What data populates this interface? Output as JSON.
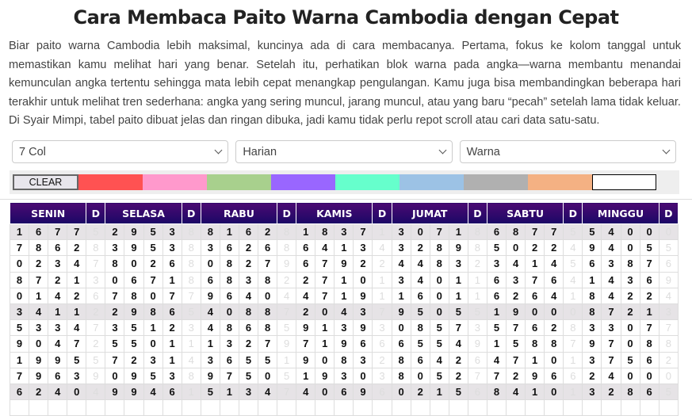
{
  "title": "Cara Membaca Paito Warna Cambodia dengan Cepat",
  "paragraph": "Biar paito warna Cambodia lebih maksimal, kuncinya ada di cara membacanya. Pertama, fokus ke kolom tanggal untuk memastikan kamu melihat hari yang benar. Setelah itu, perhatikan blok warna pada angka—warna membantu menandai kemunculan angka tertentu sehingga mata lebih cepat menangkap pengulangan. Kamu juga bisa membandingkan beberapa hari terakhir untuk melihat tren sederhana: angka yang sering muncul, jarang muncul, atau yang baru “pecah” setelah lama tidak keluar. Di Syair Mimpi, tabel paito dibuat jelas dan ringan dibuka, jadi kamu tidak perlu repot scroll atau cari data satu-satu.",
  "selects": {
    "columns": "7 Col",
    "period": "Harian",
    "mode": "Warna"
  },
  "palette": {
    "clear_label": "CLEAR",
    "colors": [
      "#ff5252",
      "#ff99cc",
      "#a8d08d",
      "#9966ff",
      "#66ffcc",
      "#9cc2e5",
      "#b0b0b0",
      "#f4b183",
      "#ffffff"
    ]
  },
  "table": {
    "days": [
      "SENIN",
      "SELASA",
      "RABU",
      "KAMIS",
      "JUMAT",
      "SABTU",
      "MINGGU"
    ],
    "d_label": "D",
    "rows": [
      [
        [
          "1677",
          "5"
        ],
        [
          "2953",
          "8"
        ],
        [
          "8162",
          "8"
        ],
        [
          "1837",
          "1"
        ],
        [
          "3071",
          "8"
        ],
        [
          "6877",
          "5"
        ],
        [
          "5400",
          "0"
        ]
      ],
      [
        [
          "7862",
          "8"
        ],
        [
          "3953",
          "8"
        ],
        [
          "3626",
          "8"
        ],
        [
          "6413",
          "4"
        ],
        [
          "3289",
          "8"
        ],
        [
          "5022",
          "4"
        ],
        [
          "9405",
          "5"
        ]
      ],
      [
        [
          "0234",
          "7"
        ],
        [
          "8026",
          "8"
        ],
        [
          "0827",
          "9"
        ],
        [
          "6792",
          "2"
        ],
        [
          "4483",
          "2"
        ],
        [
          "3414",
          "5"
        ],
        [
          "6387",
          "6"
        ]
      ],
      [
        [
          "8721",
          "3"
        ],
        [
          "0671",
          "8"
        ],
        [
          "6838",
          "2"
        ],
        [
          "2710",
          "1"
        ],
        [
          "3401",
          "1"
        ],
        [
          "6376",
          "4"
        ],
        [
          "1436",
          "9"
        ]
      ],
      [
        [
          "0142",
          "6"
        ],
        [
          "7807",
          "7"
        ],
        [
          "9640",
          "4"
        ],
        [
          "4719",
          "1"
        ],
        [
          "1601",
          "1"
        ],
        [
          "6264",
          "1"
        ],
        [
          "8422",
          "4"
        ]
      ],
      [
        [
          "3411",
          "2"
        ],
        [
          "2986",
          "5"
        ],
        [
          "4088",
          "7"
        ],
        [
          "2043",
          "7"
        ],
        [
          "9505",
          "5"
        ],
        [
          "1900",
          "0"
        ],
        [
          "8721",
          "3"
        ]
      ],
      [
        [
          "5334",
          "7"
        ],
        [
          "3512",
          "3"
        ],
        [
          "4868",
          "5"
        ],
        [
          "9139",
          "3"
        ],
        [
          "0857",
          "3"
        ],
        [
          "5762",
          "8"
        ],
        [
          "3307",
          "7"
        ]
      ],
      [
        [
          "9047",
          "2"
        ],
        [
          "5501",
          "1"
        ],
        [
          "1327",
          "9"
        ],
        [
          "7196",
          "6"
        ],
        [
          "6554",
          "9"
        ],
        [
          "1588",
          "7"
        ],
        [
          "9708",
          "8"
        ]
      ],
      [
        [
          "1995",
          "5"
        ],
        [
          "7231",
          "4"
        ],
        [
          "3655",
          "1"
        ],
        [
          "9083",
          "2"
        ],
        [
          "8642",
          "6"
        ],
        [
          "4710",
          "1"
        ],
        [
          "3756",
          "2"
        ]
      ],
      [
        [
          "7963",
          "9"
        ],
        [
          "0953",
          "8"
        ],
        [
          "9750",
          "5"
        ],
        [
          "1930",
          "3"
        ],
        [
          "8052",
          "7"
        ],
        [
          "7296",
          "6"
        ],
        [
          "2400",
          "0"
        ]
      ],
      [
        [
          "6240",
          "4"
        ],
        [
          "9946",
          "1"
        ],
        [
          "5134",
          "7"
        ],
        [
          "4069",
          "6"
        ],
        [
          "0215",
          "6"
        ],
        [
          "8410",
          "1"
        ],
        [
          "3286",
          "5"
        ]
      ]
    ]
  }
}
